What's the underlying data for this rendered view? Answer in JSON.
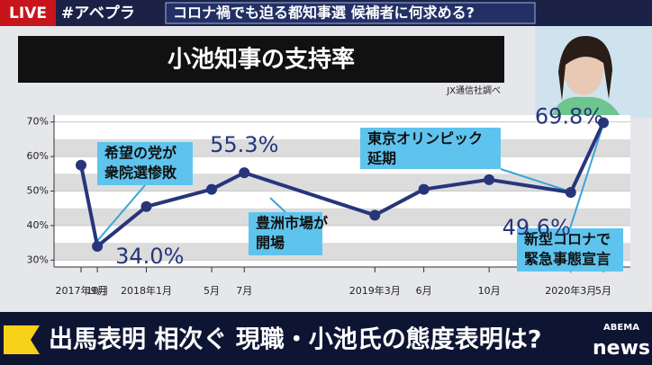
{
  "header": {
    "live": "LIVE",
    "hashtag": "#アベプラ",
    "headline": "コロナ禍でも迫る都知事選 候補者に何求める?"
  },
  "chart_data": {
    "type": "line",
    "title": "小池知事の支持率",
    "source": "JX通信社調べ",
    "categories": [
      "2017年9月",
      "10月",
      "2018年1月",
      "5月",
      "7月",
      "2019年3月",
      "6月",
      "10月",
      "2020年3月",
      "5月"
    ],
    "series": [
      {
        "color": "#27357a",
        "values": [
          57.5,
          34.0,
          45.5,
          50.5,
          55.3,
          43.0,
          50.5,
          53.3,
          49.6,
          69.8
        ],
        "value_labels": [
          null,
          "34.0%",
          null,
          null,
          "55.3%",
          null,
          null,
          null,
          "49.6%",
          "69.8%"
        ]
      }
    ],
    "ylim": [
      28,
      72
    ],
    "yticks": [
      {
        "value": 30,
        "label": "30%"
      },
      {
        "value": 40,
        "label": "40%"
      },
      {
        "value": 50,
        "label": "50%"
      },
      {
        "value": 60,
        "label": "60%"
      },
      {
        "value": 70,
        "label": "70%"
      }
    ],
    "grid": true,
    "annotations": [
      {
        "text": [
          "希望の党が",
          "衆院選惨敗"
        ]
      },
      {
        "text": [
          "豊洲市場が",
          "開場"
        ]
      },
      {
        "text": [
          "東京オリンピック",
          "延期"
        ]
      },
      {
        "text": [
          "新型コロナで",
          "緊急事態宣言"
        ]
      }
    ]
  },
  "ticker": {
    "text": "出馬表明 相次ぐ 現職・小池氏の態度表明は?"
  },
  "logo": {
    "brand": "ABEMA",
    "name": "news"
  }
}
